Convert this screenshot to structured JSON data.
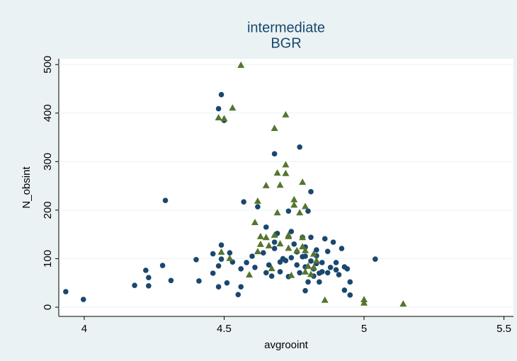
{
  "chart_data": {
    "type": "scatter",
    "title": "intermediate",
    "subtitle": "BGR",
    "x_label": "avgrooint",
    "y_label": "N_obsint",
    "xlim": [
      3.909,
      5.534
    ],
    "ylim": [
      -19,
      512
    ],
    "xticks": [
      4,
      4.5,
      5,
      5.5
    ],
    "yticks": [
      0,
      100,
      200,
      300,
      400,
      500
    ],
    "grid": true,
    "series": [
      {
        "color": "#1a476f",
        "marker": "circle",
        "x": [
          3.934,
          3.997,
          4.18,
          4.22,
          4.23,
          4.23,
          4.28,
          4.29,
          4.31,
          4.4,
          4.41,
          4.46,
          4.46,
          4.48,
          4.49,
          4.49,
          4.48,
          4.49,
          4.48,
          4.5,
          4.51,
          4.52,
          4.53,
          4.56,
          4.55,
          4.56,
          4.57,
          4.58,
          4.6,
          4.61,
          4.62,
          4.64,
          4.65,
          4.65,
          4.66,
          4.67,
          4.68,
          4.68,
          4.68,
          4.69,
          4.7,
          4.7,
          4.71,
          4.72,
          4.73,
          4.74,
          4.73,
          4.74,
          4.75,
          4.76,
          4.76,
          4.77,
          4.77,
          4.78,
          4.78,
          4.79,
          4.79,
          4.79,
          4.79,
          4.8,
          4.8,
          4.81,
          4.81,
          4.81,
          4.82,
          4.82,
          4.83,
          4.83,
          4.83,
          4.84,
          4.84,
          4.85,
          4.85,
          4.86,
          4.87,
          4.87,
          4.88,
          4.89,
          4.9,
          4.9,
          4.91,
          4.92,
          4.93,
          4.93,
          4.94,
          4.95,
          4.95,
          5.04
        ],
        "values": [
          32,
          16,
          45,
          76,
          61,
          44,
          86,
          220,
          55,
          98,
          54,
          70,
          110,
          85,
          128,
          99,
          42,
          438,
          409,
          385,
          50,
          112,
          93,
          42,
          26,
          79,
          217,
          92,
          105,
          82,
          207,
          112,
          71,
          165,
          87,
          64,
          121,
          134,
          316,
          152,
          93,
          73,
          100,
          96,
          63,
          156,
          198,
          102,
          130,
          87,
          114,
          71,
          330,
          144,
          104,
          83,
          105,
          124,
          34,
          52,
          198,
          238,
          144,
          95,
          64,
          79,
          106,
          90,
          118,
          70,
          52,
          92,
          73,
          141,
          115,
          71,
          82,
          134,
          92,
          77,
          67,
          121,
          83,
          35,
          79,
          52,
          25,
          99
        ]
      },
      {
        "color": "#55752f",
        "marker": "triangle",
        "x": [
          4.48,
          4.5,
          4.53,
          4.56,
          4.49,
          4.52,
          4.59,
          4.61,
          4.62,
          4.62,
          4.63,
          4.63,
          4.65,
          4.65,
          4.66,
          4.67,
          4.68,
          4.68,
          4.69,
          4.69,
          4.7,
          4.7,
          4.72,
          4.72,
          4.72,
          4.73,
          4.73,
          4.73,
          4.74,
          4.75,
          4.75,
          4.76,
          4.77,
          4.78,
          4.78,
          4.78,
          4.79,
          4.79,
          4.79,
          4.8,
          4.81,
          4.82,
          4.82,
          4.83,
          4.86,
          5.0,
          5.0,
          5.14
        ],
        "values": [
          391,
          389,
          411,
          499,
          114,
          101,
          67,
          175,
          219,
          115,
          130,
          146,
          251,
          144,
          127,
          80,
          149,
          369,
          195,
          277,
          252,
          131,
          397,
          276,
          294,
          146,
          149,
          122,
          66,
          211,
          222,
          117,
          195,
          258,
          125,
          144,
          208,
          117,
          73,
          85,
          68,
          110,
          82,
          96,
          15,
          16,
          9,
          7
        ]
      }
    ]
  }
}
